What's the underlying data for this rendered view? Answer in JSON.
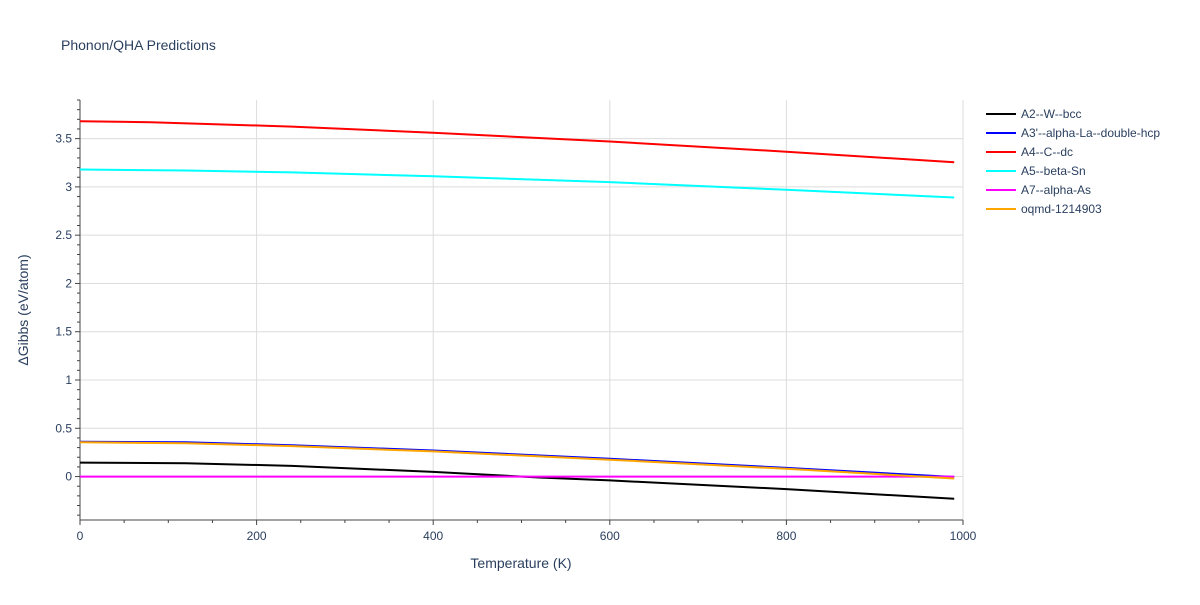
{
  "chart_data": {
    "type": "line",
    "title": "Phonon/QHA Predictions",
    "xlabel": "Temperature (K)",
    "ylabel": "ΔGibbs (eV/atom)",
    "xlim": [
      0,
      1000
    ],
    "ylim": [
      -0.45,
      3.9
    ],
    "x_ticks": [
      0,
      200,
      400,
      600,
      800,
      1000
    ],
    "x_tick_labels": [
      "0",
      "200",
      "400",
      "600",
      "800",
      "1000"
    ],
    "y_ticks": [
      0,
      0.5,
      1,
      1.5,
      2,
      2.5,
      3,
      3.5
    ],
    "y_tick_labels": [
      "0",
      "0.5",
      "1",
      "1.5",
      "2",
      "2.5",
      "3",
      "3.5"
    ],
    "grid": true,
    "legend_position": "top-right outside",
    "series": [
      {
        "name": "A2--W--bcc",
        "color": "#000000",
        "x": [
          0,
          120,
          240,
          400,
          520,
          600,
          800,
          990
        ],
        "y": [
          0.145,
          0.138,
          0.11,
          0.048,
          -0.01,
          -0.04,
          -0.13,
          -0.23
        ]
      },
      {
        "name": "A3'--alpha-La--double-hcp",
        "color": "#0000ff",
        "x": [
          0,
          120,
          240,
          400,
          600,
          800,
          990
        ],
        "y": [
          0.36,
          0.355,
          0.325,
          0.27,
          0.185,
          0.09,
          -0.005
        ]
      },
      {
        "name": "A4--C--dc",
        "color": "#ff0000",
        "x": [
          0,
          80,
          240,
          400,
          600,
          800,
          990
        ],
        "y": [
          3.68,
          3.67,
          3.625,
          3.56,
          3.47,
          3.365,
          3.255
        ]
      },
      {
        "name": "A5--beta-Sn",
        "color": "#00ffff",
        "x": [
          0,
          120,
          240,
          400,
          600,
          800,
          990
        ],
        "y": [
          3.18,
          3.17,
          3.15,
          3.11,
          3.05,
          2.97,
          2.89
        ]
      },
      {
        "name": "A7--alpha-As",
        "color": "#ff00ff",
        "x": [
          0,
          990
        ],
        "y": [
          0,
          0
        ]
      },
      {
        "name": "oqmd-1214903",
        "color": "#ffa500",
        "x": [
          0,
          120,
          240,
          400,
          600,
          800,
          990
        ],
        "y": [
          0.355,
          0.345,
          0.315,
          0.26,
          0.175,
          0.08,
          -0.02
        ]
      }
    ]
  }
}
